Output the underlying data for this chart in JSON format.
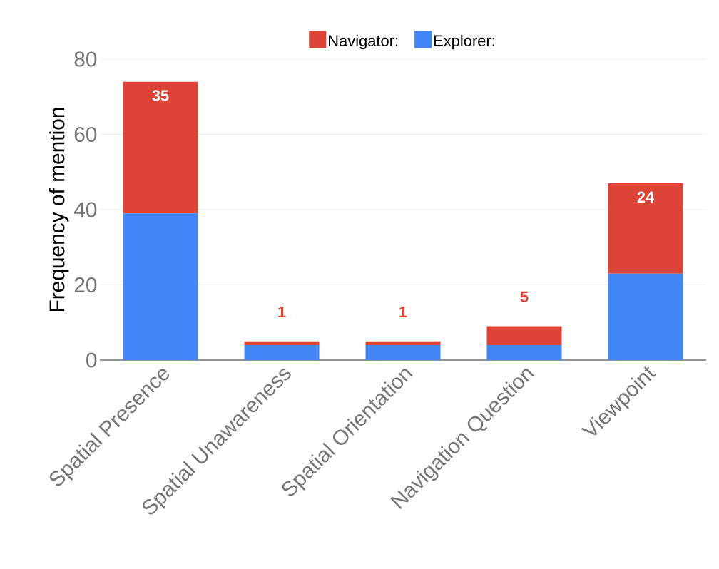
{
  "chart_data": {
    "type": "bar",
    "stacked": true,
    "ylabel": "Frequency of mention",
    "categories": [
      "Spatial Presence",
      "Spatial Unawareness",
      "Spatial Orientation",
      "Navigation Question",
      "Viewpoint"
    ],
    "series": [
      {
        "name": "Explorer:",
        "color": "#4285f4",
        "values": [
          39,
          4,
          4,
          4,
          23
        ]
      },
      {
        "name": "Navigator:",
        "color": "#db4437",
        "values": [
          35,
          1,
          1,
          5,
          24
        ],
        "value_labels": [
          "35",
          "1",
          "1",
          "5",
          "24"
        ]
      }
    ],
    "ylim": [
      0,
      80
    ],
    "yticks": [
      0,
      20,
      40,
      60,
      80
    ],
    "grid": "y",
    "legend": "top"
  }
}
